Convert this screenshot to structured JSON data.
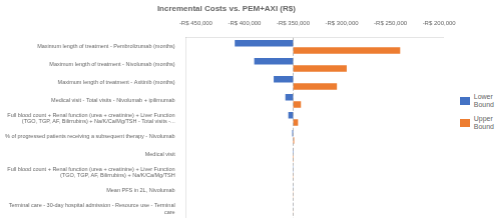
{
  "chart_data": {
    "type": "bar",
    "orientation": "horizontal",
    "title": "Incremental Costs vs. PEM+AXI (R$)",
    "categories": [
      "Maximum length of treatment - Pembrolizumab (months)",
      "Maximum length of treatment - Nivolumab (months)",
      "Maximum length of treatment - Axitinib (months)",
      "Medical visit - Total visits - Nivolumab + ipilimumab",
      "Full blood count + Renal function (urea + creatinine) + Liver Function\n(TGO, TGP, AF, Bilirrubins) + Na/K/Ca/Mg/TSH - Total visits -...",
      "% of progressed patients receiving a subsequent therapy - Nivolumab",
      "Medical visit",
      "Full blood count + Renal function (urea + creatinine) + Liver Function\n(TGO, TGP, AF, Bilirrubins) + Na/K/Ca/Mg/TSH",
      "Mean PFS in 2L, Nivolumab",
      "Terminal care - 30-day hospital admission - Resource use - Terminal\ncare"
    ],
    "base": -350000,
    "series": [
      {
        "name": "Lower\nBound",
        "color": "#4472C4",
        "values": [
          -410000,
          -390000,
          -370000,
          -358000,
          -355000,
          -351000,
          -350500,
          -350300,
          -350200,
          -350100
        ]
      },
      {
        "name": "Upper\nBound",
        "color": "#ED7D31",
        "values": [
          -240000,
          -295000,
          -305000,
          -342000,
          -345000,
          -349000,
          -349500,
          -349700,
          -349800,
          -349900
        ]
      }
    ],
    "xlim": [
      -460000,
      -195000
    ],
    "xticks": [
      {
        "value": -450000,
        "label": "-R$ 450,000"
      },
      {
        "value": -400000,
        "label": "-R$ 400,000"
      },
      {
        "value": -350000,
        "label": "-R$ 350,000"
      },
      {
        "value": -300000,
        "label": "-R$ 300,000"
      },
      {
        "value": -250000,
        "label": "-R$ 250,000"
      },
      {
        "value": -200000,
        "label": "-R$ 200,000"
      }
    ],
    "grid": false,
    "legend": "right"
  }
}
